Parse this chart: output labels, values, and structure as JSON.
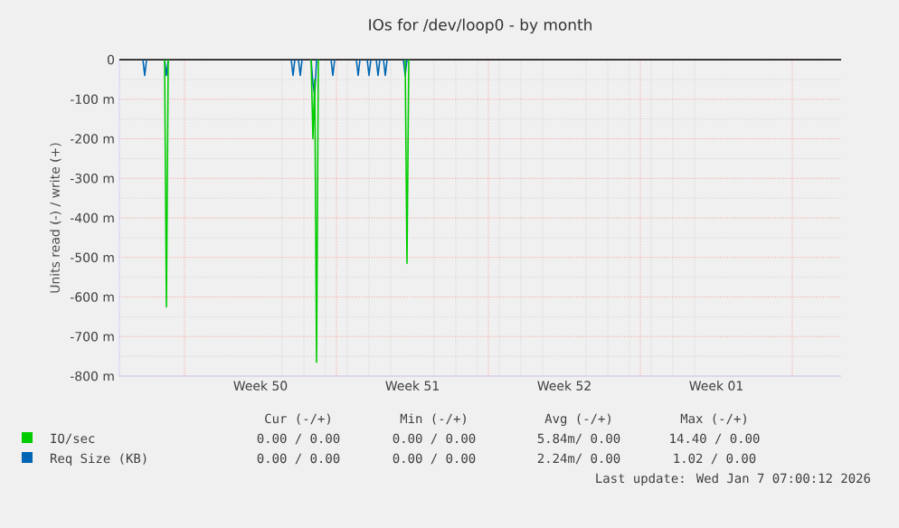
{
  "chart_data": {
    "type": "line",
    "title": "IOs for /dev/loop0 - by month",
    "ylabel": "Units read (-) / write (+)",
    "xlim": [
      "2025-12-05T00:00",
      "2026-01-07T06:00"
    ],
    "xticks": [
      {
        "value": "2025-12-08T00:00",
        "label": null
      },
      {
        "value": "2025-12-11T12:00",
        "label": "Week 50"
      },
      {
        "value": "2025-12-15T00:00",
        "label": null
      },
      {
        "value": "2025-12-18T12:00",
        "label": "Week 51"
      },
      {
        "value": "2025-12-22T00:00",
        "label": null
      },
      {
        "value": "2025-12-25T12:00",
        "label": "Week 52"
      },
      {
        "value": "2025-12-29T00:00",
        "label": null
      },
      {
        "value": "2026-01-01T12:00",
        "label": "Week 01"
      },
      {
        "value": "2026-01-05T00:00",
        "label": null
      }
    ],
    "ylim": [
      -800,
      0
    ],
    "yticks": [
      {
        "value": -800,
        "label": "-800 m"
      },
      {
        "value": -700,
        "label": "-700 m"
      },
      {
        "value": -600,
        "label": "-600 m"
      },
      {
        "value": -500,
        "label": "-500 m"
      },
      {
        "value": -400,
        "label": "-400 m"
      },
      {
        "value": -300,
        "label": "-300 m"
      },
      {
        "value": -200,
        "label": "-200 m"
      },
      {
        "value": -100,
        "label": "-100 m"
      },
      0
    ],
    "grid": true,
    "legend": "bottom",
    "marker": "none",
    "line_style": "solid",
    "ref_lines": [
      {
        "axis": "y",
        "value": 0,
        "color": "#000000"
      }
    ],
    "series": [
      {
        "name": "Req Size (KB)",
        "color": "#0066b3",
        "x": [
          "2025-12-06T02:00",
          "2025-12-06T04:00",
          "2025-12-06T06:00",
          "2025-12-06T16:00",
          "2025-12-07T02:00",
          "2025-12-07T04:00",
          "2025-12-07T06:00",
          "2025-12-10T00:00",
          "2025-12-12T22:00",
          "2025-12-13T00:00",
          "2025-12-13T02:00",
          "2025-12-13T05:00",
          "2025-12-13T06:00",
          "2025-12-13T08:00",
          "2025-12-13T10:00",
          "2025-12-13T15:00",
          "2025-12-13T20:00",
          "2025-12-13T22:00",
          "2025-12-14T00:00",
          "2025-12-14T02:00",
          "2025-12-14T10:00",
          "2025-12-14T18:00",
          "2025-12-14T20:00",
          "2025-12-14T22:00",
          "2025-12-15T12:00",
          "2025-12-15T22:00",
          "2025-12-16T00:00",
          "2025-12-16T02:00",
          "2025-12-16T06:00",
          "2025-12-16T10:00",
          "2025-12-16T12:00",
          "2025-12-16T14:00",
          "2025-12-16T17:00",
          "2025-12-16T20:00",
          "2025-12-16T22:00",
          "2025-12-17T00:00",
          "2025-12-17T02:00",
          "2025-12-17T04:00",
          "2025-12-17T06:00",
          "2025-12-17T08:00",
          "2025-12-17T17:00",
          "2025-12-18T02:00",
          "2025-12-18T04:00",
          "2025-12-18T06:00"
        ],
        "values": [
          0,
          -40,
          0,
          null,
          0,
          -40,
          0,
          null,
          0,
          -40,
          0,
          null,
          0,
          -40,
          0,
          null,
          0,
          -60,
          -90,
          0,
          null,
          0,
          -40,
          0,
          null,
          0,
          -40,
          0,
          null,
          0,
          -40,
          0,
          null,
          0,
          -40,
          0,
          null,
          0,
          -40,
          0,
          null,
          0,
          -40,
          0
        ]
      },
      {
        "name": "IO/sec",
        "color": "#00cc00",
        "x": [
          "2025-12-07T02:00",
          "2025-12-07T04:00",
          "2025-12-07T06:00",
          "2025-12-10T00:00",
          "2025-12-13T20:00",
          "2025-12-13T22:00",
          "2025-12-14T00:00",
          "2025-12-14T02:00",
          "2025-12-14T04:00",
          "2025-12-16T00:00",
          "2025-12-18T04:00",
          "2025-12-18T06:00",
          "2025-12-18T08:00"
        ],
        "values": [
          0,
          -625,
          0,
          null,
          0,
          -200,
          -50,
          -765,
          0,
          null,
          0,
          -515,
          0
        ]
      }
    ],
    "annotations": [
      "Cur (-/+)",
      "Min (-/+)",
      "Avg (-/+)",
      "Max (-/+)",
      "0.00 / 0.00",
      "0.00 / 0.00",
      "5.84m/ 0.00",
      "14.40 / 0.00",
      "0.00 / 0.00",
      "0.00 / 0.00",
      "2.24m/ 0.00",
      "1.02 / 0.00",
      "Last update: Wed Jan  7 07:00:12 2026"
    ]
  }
}
